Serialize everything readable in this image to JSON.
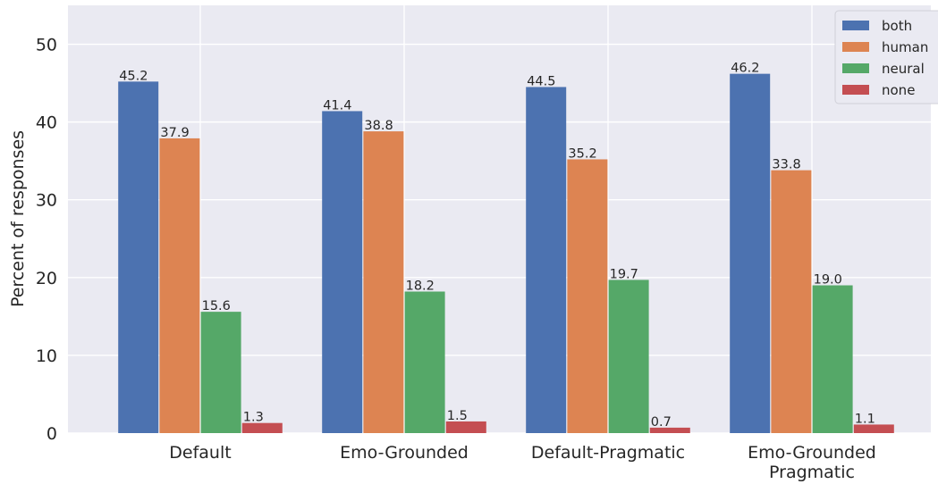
{
  "chart_data": {
    "type": "bar",
    "categories": [
      "Default",
      "Emo-Grounded",
      "Default-Pragmatic",
      "Emo-Grounded\nPragmatic"
    ],
    "series": [
      {
        "name": "both",
        "color": "#4c72b0",
        "values": [
          45.2,
          41.4,
          44.5,
          46.2
        ]
      },
      {
        "name": "human",
        "color": "#dd8452",
        "values": [
          37.9,
          38.8,
          35.2,
          33.8
        ]
      },
      {
        "name": "neural",
        "color": "#55a868",
        "values": [
          15.6,
          18.2,
          19.7,
          19.0
        ]
      },
      {
        "name": "none",
        "color": "#c44e52",
        "values": [
          1.3,
          1.5,
          0.7,
          1.1
        ]
      }
    ],
    "ylabel": "Percent of responses",
    "ylim": [
      0,
      55
    ],
    "yticks": [
      0,
      10,
      20,
      30,
      40,
      50
    ],
    "grid": true,
    "legend": "top-right",
    "background": "#eaeaf2"
  }
}
